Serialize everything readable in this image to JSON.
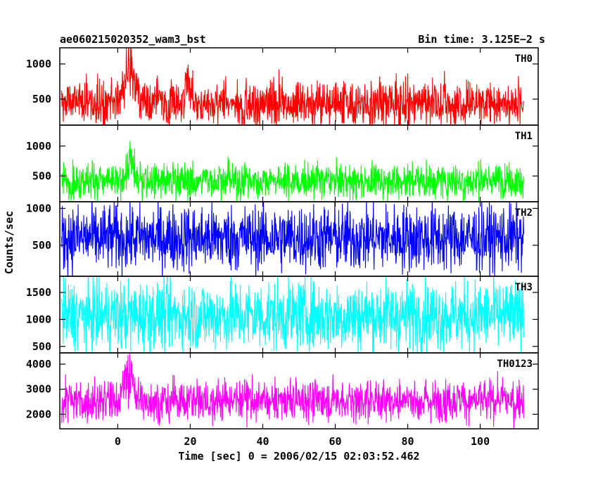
{
  "header": {
    "title": "ae060215020352_wam3_bst",
    "bin_time": "Bin time: 3.125E−2 s"
  },
  "chart_data": {
    "type": "line",
    "xlabel": "Time [sec] 0 = 2006/02/15 02:03:52.462",
    "ylabel": "Counts/sec",
    "xlim": [
      -16,
      116
    ],
    "x_ticks": [
      0,
      20,
      40,
      60,
      80,
      100
    ],
    "x_tick_labels": [
      "0",
      "20",
      "40",
      "60",
      "80",
      "100"
    ],
    "data_range": [
      -15.5,
      112
    ],
    "panels": [
      {
        "name": "TH0",
        "color": "#ff0000",
        "ylim": [
          130,
          1230
        ],
        "y_ticks": [
          500,
          1000
        ],
        "y_tick_labels": [
          "500",
          "1000"
        ],
        "baseline": 450,
        "noise_sd": 170,
        "events": [
          [
            3,
            1.5,
            380
          ],
          [
            19.5,
            1.0,
            220
          ]
        ]
      },
      {
        "name": "TH1",
        "color": "#00ff00",
        "ylim": [
          70,
          1350
        ],
        "y_ticks": [
          500,
          1000
        ],
        "y_tick_labels": [
          "500",
          "1000"
        ],
        "baseline": 420,
        "noise_sd": 150,
        "events": [
          [
            3.5,
            0.9,
            300
          ]
        ]
      },
      {
        "name": "TH2",
        "color": "#0000ff",
        "ylim": [
          80,
          1090
        ],
        "y_ticks": [
          500,
          1000
        ],
        "y_tick_labels": [
          "500",
          "1000"
        ],
        "baseline": 600,
        "noise_sd": 230,
        "events": []
      },
      {
        "name": "TH3",
        "color": "#00ffff",
        "ylim": [
          380,
          1800
        ],
        "y_ticks": [
          500,
          1000,
          1500
        ],
        "y_tick_labels": [
          "500",
          "1000",
          "1500"
        ],
        "baseline": 1070,
        "noise_sd": 330,
        "events": []
      },
      {
        "name": "TH0123",
        "color": "#ff00ff",
        "ylim": [
          1420,
          4450
        ],
        "y_ticks": [
          2000,
          3000,
          4000
        ],
        "y_tick_labels": [
          "2000",
          "3000",
          "4000"
        ],
        "baseline": 2550,
        "noise_sd": 420,
        "events": [
          [
            3,
            1.3,
            1000
          ]
        ]
      }
    ]
  }
}
